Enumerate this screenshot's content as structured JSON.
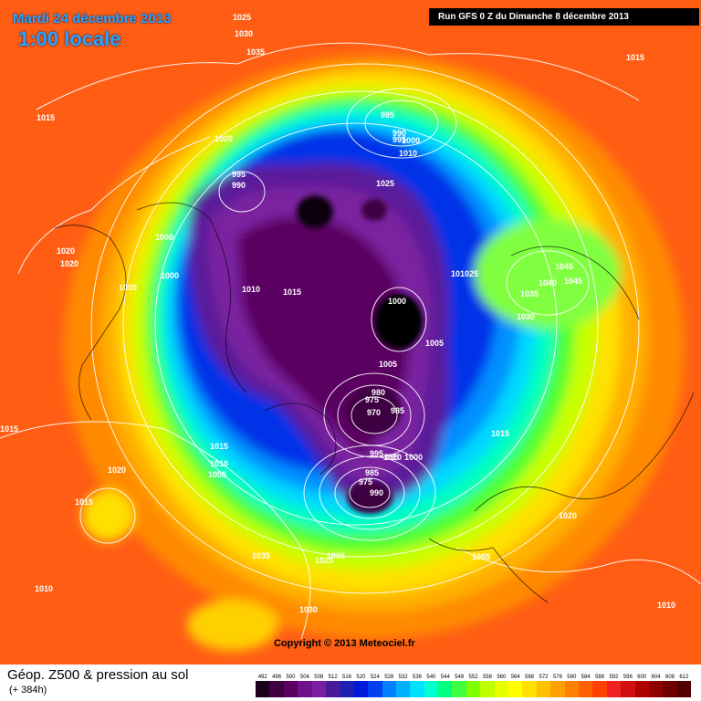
{
  "header": {
    "date": "Mardi 24 décembre 2013",
    "time": "1:00 locale",
    "run": "Run GFS 0 Z du Dimanche 8 décembre 2013"
  },
  "copyright": "Copyright © 2013 Meteociel.fr",
  "footer": {
    "title": "Géop. Z500 & pression au sol",
    "subtitle": "(+ 384h)"
  },
  "scale": {
    "labels": [
      "492",
      "496",
      "500",
      "504",
      "508",
      "512",
      "516",
      "520",
      "524",
      "528",
      "532",
      "536",
      "540",
      "544",
      "548",
      "552",
      "556",
      "560",
      "564",
      "568",
      "572",
      "576",
      "580",
      "584",
      "588",
      "592",
      "596",
      "600",
      "604",
      "608",
      "612"
    ],
    "colors": [
      "#1a001a",
      "#3d0040",
      "#5a0060",
      "#70108a",
      "#7a20a0",
      "#4a1a9a",
      "#2020b0",
      "#0018d8",
      "#0040f0",
      "#0080ff",
      "#00b0ff",
      "#00e0ff",
      "#00ffd0",
      "#00ff80",
      "#40ff40",
      "#80ff00",
      "#c0ff00",
      "#e8ff00",
      "#ffff00",
      "#ffe000",
      "#ffc000",
      "#ffa000",
      "#ff8000",
      "#ff6000",
      "#ff4000",
      "#f02020",
      "#d01010",
      "#b00000",
      "#900000",
      "#700000",
      "#500000"
    ]
  },
  "pressure_labels": [
    {
      "text": "1025"
    },
    {
      "text": "1030"
    },
    {
      "text": "1035"
    },
    {
      "text": "1015"
    },
    {
      "text": "1015"
    },
    {
      "text": "985"
    },
    {
      "text": "990"
    },
    {
      "text": "995"
    },
    {
      "text": "1000"
    },
    {
      "text": "1010"
    },
    {
      "text": "1020"
    },
    {
      "text": "995"
    },
    {
      "text": "990"
    },
    {
      "text": "1025"
    },
    {
      "text": "1000"
    },
    {
      "text": "1020"
    },
    {
      "text": "1020"
    },
    {
      "text": "1000"
    },
    {
      "text": "1005"
    },
    {
      "text": "1010"
    },
    {
      "text": "1015"
    },
    {
      "text": "1000"
    },
    {
      "text": "1005"
    },
    {
      "text": "101025"
    },
    {
      "text": "1045"
    },
    {
      "text": "1040"
    },
    {
      "text": "1045"
    },
    {
      "text": "1035"
    },
    {
      "text": "1030"
    },
    {
      "text": "1005"
    },
    {
      "text": "980"
    },
    {
      "text": "975"
    },
    {
      "text": "970"
    },
    {
      "text": "985"
    },
    {
      "text": "995"
    },
    {
      "text": "1010"
    },
    {
      "text": "1015"
    },
    {
      "text": "1015"
    },
    {
      "text": "1015"
    },
    {
      "text": "990"
    },
    {
      "text": "995"
    },
    {
      "text": "1000"
    },
    {
      "text": "1010"
    },
    {
      "text": "1005"
    },
    {
      "text": "1005"
    },
    {
      "text": "1020"
    },
    {
      "text": "985"
    },
    {
      "text": "975"
    },
    {
      "text": "1015"
    },
    {
      "text": "1020"
    },
    {
      "text": "1035"
    },
    {
      "text": "1025"
    },
    {
      "text": "1005"
    },
    {
      "text": "1030"
    },
    {
      "text": "1010"
    },
    {
      "text": "1010"
    }
  ]
}
